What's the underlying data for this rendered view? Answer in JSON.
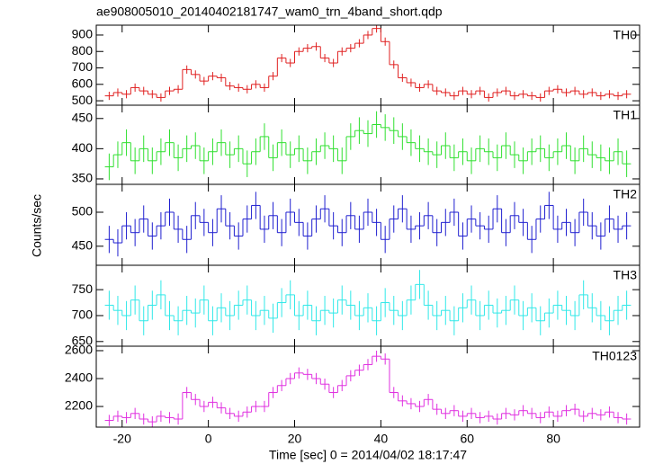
{
  "chart_data": {
    "type": "step",
    "title": "ae908005010_20140402181747_wam0_trn_4band_short.qdp",
    "xlabel": "Time [sec] 0 = 2014/04/02 18:17:47",
    "ylabel": "Counts/sec",
    "xlim": [
      -26,
      100
    ],
    "xticks": [
      -20,
      0,
      20,
      40,
      60,
      80
    ],
    "bins": [
      -24,
      -22,
      -20,
      -18,
      -16,
      -14,
      -12,
      -10,
      -8,
      -6,
      -4,
      -2,
      0,
      2,
      4,
      6,
      8,
      10,
      12,
      14,
      16,
      18,
      20,
      22,
      24,
      26,
      28,
      30,
      32,
      34,
      36,
      38,
      40,
      42,
      44,
      46,
      48,
      50,
      52,
      54,
      56,
      58,
      60,
      62,
      64,
      66,
      68,
      70,
      72,
      74,
      76,
      78,
      80,
      82,
      84,
      86,
      88,
      90,
      92,
      94,
      96,
      98
    ],
    "panels": [
      {
        "name": "TH0",
        "color": "#e02020",
        "ylim": [
          473,
          960
        ],
        "yticks": [
          500,
          600,
          700,
          800,
          900
        ],
        "error": 25,
        "values": [
          530,
          550,
          540,
          580,
          560,
          540,
          520,
          560,
          570,
          690,
          660,
          620,
          650,
          640,
          590,
          580,
          570,
          600,
          580,
          650,
          760,
          730,
          800,
          820,
          830,
          760,
          730,
          800,
          820,
          850,
          900,
          940,
          860,
          720,
          640,
          610,
          580,
          600,
          560,
          550,
          530,
          560,
          540,
          560,
          520,
          550,
          560,
          530,
          540,
          530,
          520,
          560,
          570,
          550,
          560,
          540,
          550,
          530,
          540,
          530,
          540
        ]
      },
      {
        "name": "TH1",
        "color": "#30e030",
        "ylim": [
          341,
          472
        ],
        "yticks": [
          350,
          400,
          450
        ],
        "error": 22,
        "values": [
          370,
          390,
          410,
          380,
          400,
          380,
          395,
          410,
          385,
          400,
          405,
          380,
          395,
          410,
          390,
          400,
          375,
          395,
          420,
          385,
          410,
          390,
          400,
          380,
          395,
          405,
          400,
          380,
          420,
          430,
          425,
          440,
          435,
          430,
          420,
          410,
          400,
          395,
          390,
          405,
          385,
          395,
          380,
          400,
          395,
          385,
          405,
          390,
          380,
          395,
          400,
          385,
          395,
          405,
          380,
          400,
          390,
          385,
          380,
          395,
          375
        ]
      },
      {
        "name": "TH2",
        "color": "#2020d0",
        "ylim": [
          422,
          541
        ],
        "yticks": [
          450,
          500
        ],
        "error": 20,
        "values": [
          460,
          455,
          480,
          470,
          490,
          465,
          480,
          500,
          475,
          460,
          495,
          485,
          470,
          505,
          480,
          465,
          490,
          510,
          475,
          495,
          470,
          500,
          485,
          465,
          490,
          505,
          480,
          470,
          495,
          475,
          500,
          485,
          460,
          490,
          505,
          475,
          480,
          495,
          470,
          485,
          500,
          465,
          490,
          480,
          475,
          505,
          470,
          495,
          485,
          460,
          490,
          510,
          475,
          485,
          470,
          500,
          480,
          465,
          490,
          475,
          480
        ]
      },
      {
        "name": "TH3",
        "color": "#30e8e8",
        "ylim": [
          641,
          797
        ],
        "yticks": [
          650,
          700,
          750
        ],
        "error": 28,
        "values": [
          720,
          710,
          700,
          730,
          690,
          720,
          740,
          700,
          690,
          710,
          705,
          730,
          690,
          715,
          700,
          720,
          730,
          700,
          710,
          695,
          725,
          740,
          700,
          720,
          690,
          710,
          705,
          730,
          720,
          700,
          715,
          690,
          725,
          710,
          700,
          730,
          760,
          720,
          700,
          710,
          690,
          715,
          730,
          700,
          720,
          705,
          710,
          730,
          700,
          715,
          690,
          705,
          720,
          710,
          700,
          740,
          715,
          700,
          690,
          710,
          720
        ]
      },
      {
        "name": "TH0123",
        "color": "#e030e0",
        "ylim": [
          2052,
          2632
        ],
        "yticks": [
          2200,
          2400,
          2600
        ],
        "error": 40,
        "values": [
          2100,
          2130,
          2120,
          2150,
          2110,
          2090,
          2130,
          2120,
          2110,
          2300,
          2250,
          2200,
          2230,
          2190,
          2150,
          2130,
          2160,
          2200,
          2200,
          2300,
          2350,
          2400,
          2440,
          2430,
          2400,
          2360,
          2300,
          2350,
          2420,
          2460,
          2500,
          2560,
          2540,
          2300,
          2240,
          2220,
          2200,
          2250,
          2180,
          2150,
          2170,
          2130,
          2150,
          2120,
          2130,
          2110,
          2150,
          2140,
          2170,
          2150,
          2120,
          2160,
          2130,
          2170,
          2180,
          2130,
          2150,
          2140,
          2160,
          2120,
          2110
        ]
      }
    ]
  }
}
